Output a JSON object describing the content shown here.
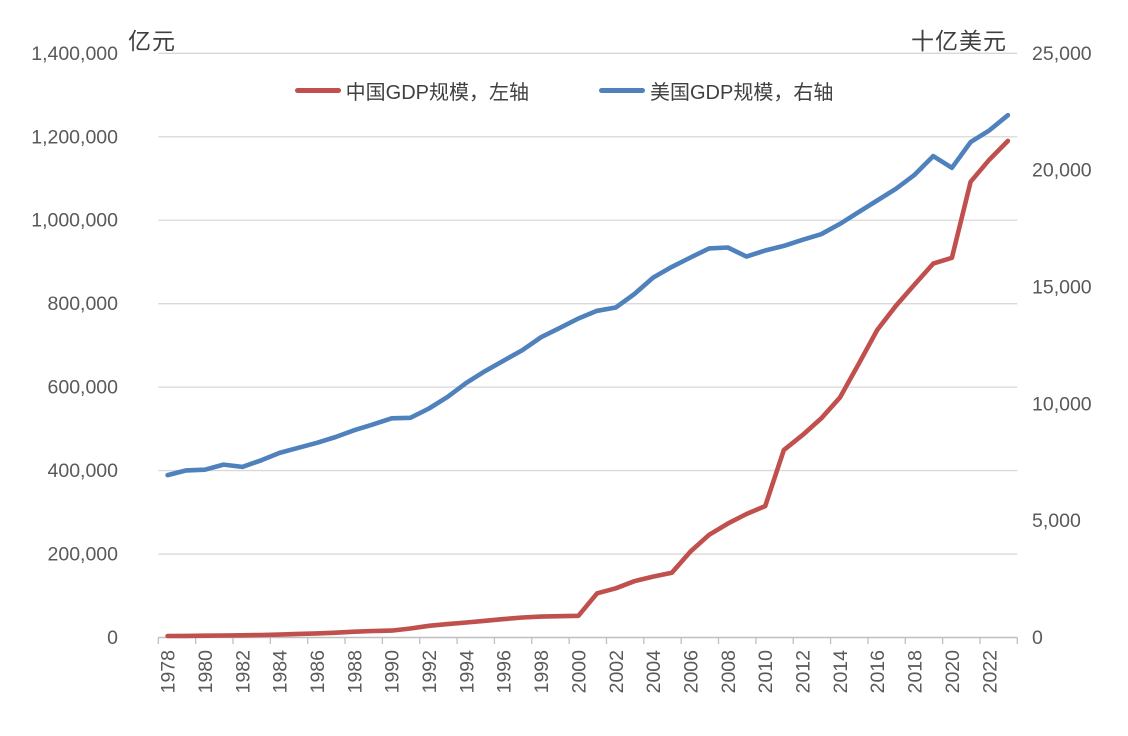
{
  "chart_data": {
    "type": "line",
    "title": "",
    "grid": true,
    "legend_position": "top",
    "x": [
      1978,
      1979,
      1980,
      1981,
      1982,
      1983,
      1984,
      1985,
      1986,
      1987,
      1988,
      1989,
      1990,
      1991,
      1992,
      1993,
      1994,
      1995,
      1996,
      1997,
      1998,
      1999,
      2000,
      2001,
      2002,
      2003,
      2004,
      2005,
      2006,
      2007,
      2008,
      2009,
      2010,
      2011,
      2012,
      2013,
      2014,
      2015,
      2016,
      2017,
      2018,
      2019,
      2020,
      2021,
      2022,
      2023
    ],
    "x_tick_labels": [
      "1978",
      "1980",
      "1982",
      "1984",
      "1986",
      "1988",
      "1990",
      "1992",
      "1994",
      "1996",
      "1998",
      "2000",
      "2002",
      "2004",
      "2006",
      "2008",
      "2010",
      "2012",
      "2014",
      "2016",
      "2018",
      "2020",
      "2022"
    ],
    "series": [
      {
        "name": "中国GDP规模，左轴",
        "axis": "left",
        "color": "#C0504D",
        "values": [
          3500,
          3900,
          4400,
          4800,
          5300,
          6000,
          7000,
          8600,
          9800,
          11500,
          14000,
          15500,
          16500,
          21500,
          28000,
          32000,
          36000,
          40000,
          44000,
          48000,
          50000,
          51000,
          52000,
          106000,
          118000,
          135000,
          146000,
          155000,
          206000,
          246000,
          273000,
          296000,
          315000,
          449000,
          485000,
          525000,
          575000,
          655000,
          737000,
          795000,
          846000,
          896000,
          910000,
          1092000,
          1145000,
          1190000
        ]
      },
      {
        "name": "美国GDP规模，右轴",
        "axis": "right",
        "color": "#4F81BD",
        "values": [
          6950,
          7150,
          7180,
          7400,
          7300,
          7580,
          7900,
          8120,
          8330,
          8580,
          8870,
          9120,
          9380,
          9400,
          9800,
          10300,
          10900,
          11400,
          11850,
          12300,
          12850,
          13250,
          13650,
          13980,
          14120,
          14700,
          15400,
          15860,
          16260,
          16650,
          16690,
          16300,
          16560,
          16760,
          17020,
          17260,
          17700,
          18200,
          18700,
          19200,
          19800,
          20600,
          20100,
          21200,
          21700,
          22350
        ]
      }
    ],
    "left_axis": {
      "unit": "亿元",
      "min": 0,
      "max": 1400000,
      "step": 200000,
      "tick_labels": [
        "0",
        "200,000",
        "400,000",
        "600,000",
        "800,000",
        "1,000,000",
        "1,200,000",
        "1,400,000"
      ]
    },
    "right_axis": {
      "unit": "十亿美元",
      "min": 0,
      "max": 25000,
      "step": 5000,
      "tick_labels": [
        "0",
        "5,000",
        "10,000",
        "15,000",
        "20,000",
        "25,000"
      ]
    },
    "colors": {
      "china_line": "#C0504D",
      "us_line": "#4F81BD",
      "gridline": "#D9D9D9",
      "axis_line": "#BFBFBF",
      "tick_text": "#595959"
    }
  }
}
